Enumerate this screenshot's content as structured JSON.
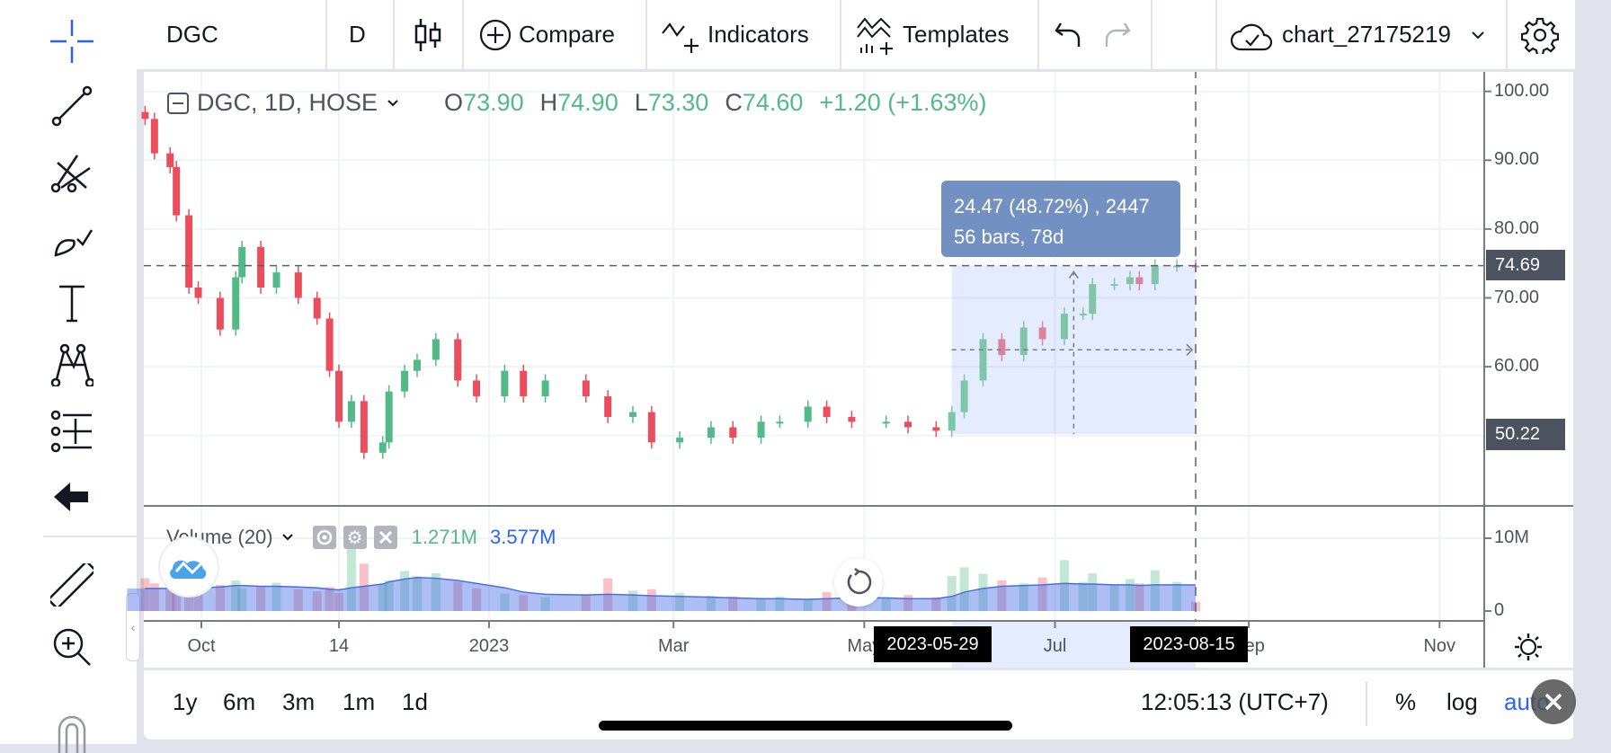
{
  "topbar": {
    "symbol": "DGC",
    "interval": "D",
    "compare": "Compare",
    "indicators": "Indicators",
    "templates": "Templates",
    "chart_name": "chart_27175219"
  },
  "legend": {
    "title": "DGC, 1D, HOSE",
    "o_label": "O",
    "o": "73.90",
    "h_label": "H",
    "h": "74.90",
    "l_label": "L",
    "l": "73.30",
    "c_label": "C",
    "c": "74.60",
    "change": "+1.20 (+1.63%)"
  },
  "volume_legend": {
    "title": "Volume (20)",
    "volume": "1.271M",
    "ma": "3.577M"
  },
  "measure": {
    "line1": "24.47 (48.72%) , 2447",
    "line2": "56 bars, 78d",
    "start_date": "2023-05-29",
    "end_date": "2023-08-15",
    "start_price": "50.22",
    "end_price": "74.69"
  },
  "bottombar": {
    "ranges": [
      "1y",
      "6m",
      "3m",
      "1m",
      "1d"
    ],
    "clock": "12:05:13 (UTC+7)",
    "percent": "%",
    "log": "log",
    "auto": "auto"
  },
  "colors": {
    "up": "#53b987",
    "down": "#eb4d5c",
    "accent": "#2962ff",
    "measure": "#7390c2"
  },
  "chart_data": {
    "type": "candlestick",
    "price_axis": {
      "ticks": [
        "100.00",
        "90.00",
        "80.00",
        "70.00",
        "60.00"
      ],
      "range": [
        44,
        102
      ]
    },
    "volume_axis": {
      "ticks": [
        "10M",
        "0"
      ]
    },
    "time_axis": {
      "ticks": [
        {
          "label": "Oct",
          "date": "2022-10-01"
        },
        {
          "label": "14",
          "date": "2022-11-14"
        },
        {
          "label": "2023",
          "date": "2023-01-01"
        },
        {
          "label": "Mar",
          "date": "2023-03-01"
        },
        {
          "label": "May",
          "date": "2023-05-01"
        },
        {
          "label": "Jul",
          "date": "2023-07-01"
        },
        {
          "label": "Sep",
          "date": "2023-09-01"
        },
        {
          "label": "Nov",
          "date": "2023-11-01"
        }
      ]
    },
    "dates": [
      "2022-09-13",
      "2022-09-16",
      "2022-09-21",
      "2022-09-23",
      "2022-09-27",
      "2022-09-30",
      "2022-10-07",
      "2022-10-12",
      "2022-10-14",
      "2022-10-20",
      "2022-10-25",
      "2022-11-01",
      "2022-11-07",
      "2022-11-11",
      "2022-11-14",
      "2022-11-18",
      "2022-11-22",
      "2022-11-28",
      "2022-11-30",
      "2022-12-05",
      "2022-12-09",
      "2022-12-15",
      "2022-12-22",
      "2022-12-28",
      "2023-01-06",
      "2023-01-12",
      "2023-01-19",
      "2023-02-01",
      "2023-02-08",
      "2023-02-16",
      "2023-02-22",
      "2023-03-03",
      "2023-03-13",
      "2023-03-20",
      "2023-03-29",
      "2023-04-04",
      "2023-04-13",
      "2023-04-19",
      "2023-04-27",
      "2023-05-08",
      "2023-05-15",
      "2023-05-24",
      "2023-05-29",
      "2023-06-02",
      "2023-06-08",
      "2023-06-14",
      "2023-06-21",
      "2023-06-27",
      "2023-07-04",
      "2023-07-10",
      "2023-07-13",
      "2023-07-20",
      "2023-07-25",
      "2023-07-28",
      "2023-08-02",
      "2023-08-09",
      "2023-08-15"
    ],
    "close": [
      96,
      91,
      89,
      82,
      71.5,
      70,
      65.4,
      73,
      77.4,
      71.5,
      73.7,
      70,
      67,
      59.4,
      52,
      55,
      47.5,
      49,
      56.4,
      59.4,
      61,
      64,
      58,
      55.7,
      59.4,
      55.7,
      58,
      55.7,
      52.7,
      53.4,
      49,
      49.7,
      51.2,
      49.7,
      52,
      52,
      54.2,
      52.7,
      52,
      52,
      51.2,
      50.7,
      53.4,
      58,
      64,
      61.7,
      65.7,
      64,
      67.7,
      67.7,
      72,
      72,
      73,
      72,
      74.7,
      74.7,
      74.6
    ],
    "volume_m": [
      4.5,
      3.8,
      3.2,
      4.0,
      3.5,
      2.8,
      3.6,
      4.2,
      3.1,
      3.4,
      3.9,
      3.0,
      2.7,
      3.3,
      2.5,
      9.5,
      6.5,
      3.8,
      4.2,
      5.5,
      4.8,
      5.2,
      4.0,
      3.1,
      2.4,
      2.2,
      1.9,
      2.3,
      4.5,
      2.8,
      3.0,
      2.5,
      2.1,
      2.0,
      1.8,
      2.0,
      1.6,
      2.6,
      2.1,
      1.7,
      2.2,
      1.9,
      4.8,
      6.0,
      5.1,
      4.2,
      3.8,
      4.6,
      7.0,
      4.0,
      5.2,
      3.6,
      4.4,
      3.8,
      5.6,
      4.0,
      1.271
    ],
    "volume_ma_m": [
      3.1,
      3.1,
      3.1,
      3.1,
      3.2,
      3.2,
      3.3,
      3.5,
      3.5,
      3.4,
      3.4,
      3.3,
      3.2,
      3.0,
      2.9,
      3.2,
      3.4,
      3.7,
      4.0,
      4.4,
      4.6,
      4.5,
      4.2,
      3.8,
      3.2,
      2.6,
      2.3,
      2.2,
      2.3,
      2.2,
      2.1,
      2.0,
      1.9,
      1.8,
      1.7,
      1.7,
      1.6,
      1.7,
      1.8,
      1.8,
      1.7,
      1.7,
      2.0,
      2.6,
      3.1,
      3.4,
      3.5,
      3.6,
      3.8,
      3.7,
      3.7,
      3.6,
      3.6,
      3.5,
      3.6,
      3.6,
      3.577
    ]
  }
}
